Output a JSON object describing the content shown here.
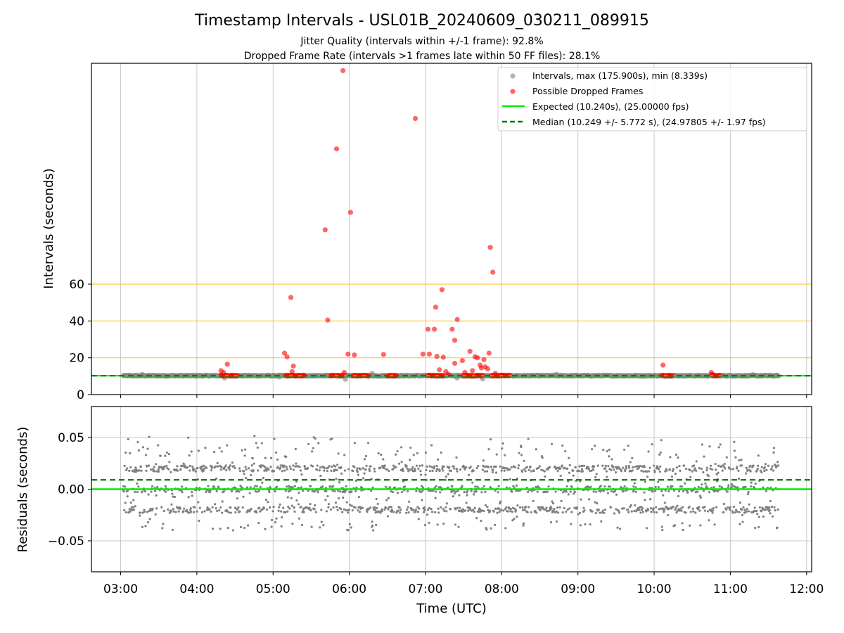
{
  "chart_data": [
    {
      "type": "scatter",
      "title": "Timestamp Intervals - USL01B_20240609_030211_089915",
      "subtitle_1": "Jitter Quality (intervals within +/-1 frame): 92.8%",
      "subtitle_2": "Dropped Frame Rate (intervals >1 frames late within 50 FF files): 28.1%",
      "xlabel": "",
      "ylabel": "Intervals (seconds)",
      "xlim": [
        "02:37",
        "12:04"
      ],
      "ylim": [
        0,
        180
      ],
      "x_ticks": [
        "03:00",
        "04:00",
        "05:00",
        "06:00",
        "07:00",
        "08:00",
        "09:00",
        "10:00",
        "11:00",
        "12:00"
      ],
      "y_ticks": [
        "0",
        "20",
        "40",
        "60"
      ],
      "grid": "vertical",
      "reference_lines": [
        20,
        40,
        60
      ],
      "reference_color": "#ffc83d",
      "legend_position": "top-right",
      "legend": [
        "Intervals, max (175.900s), min (8.339s)",
        "Possible Dropped Frames",
        "Expected (10.240s), (25.00000 fps)",
        "Median (10.249 +/- 5.772 s), (24.97805 +/- 1.97 fps)"
      ],
      "series": [
        {
          "name": "Intervals, max (175.900s), min (8.339s)",
          "color": "#808080",
          "x_range": [
            "03:02",
            "11:38"
          ],
          "typical_value": 10.24,
          "points": [
            {
              "x": "03:17",
              "y": 11.0
            },
            {
              "x": "04:22",
              "y": 9.0
            },
            {
              "x": "05:05",
              "y": 9.5
            },
            {
              "x": "05:57",
              "y": 8.3
            },
            {
              "x": "06:18",
              "y": 11.5
            },
            {
              "x": "07:25",
              "y": 9.0
            },
            {
              "x": "07:45",
              "y": 8.5
            },
            {
              "x": "08:43",
              "y": 11.0
            },
            {
              "x": "11:18",
              "y": 10.8
            }
          ]
        },
        {
          "name": "Possible Dropped Frames",
          "color": "#ff0000",
          "clusters": [
            {
              "from": "04:19",
              "to": "04:32",
              "y": 10.3
            },
            {
              "from": "05:10",
              "to": "05:25",
              "y": 10.3
            },
            {
              "from": "05:45",
              "to": "05:55",
              "y": 10.3
            },
            {
              "from": "06:03",
              "to": "06:15",
              "y": 10.3
            },
            {
              "from": "06:30",
              "to": "06:37",
              "y": 10.3
            },
            {
              "from": "07:02",
              "to": "07:14",
              "y": 10.3
            },
            {
              "from": "07:30",
              "to": "07:45",
              "y": 10.3
            },
            {
              "from": "07:52",
              "to": "08:06",
              "y": 10.3
            },
            {
              "from": "10:06",
              "to": "10:15",
              "y": 10.3
            },
            {
              "from": "10:46",
              "to": "10:52",
              "y": 10.3
            }
          ],
          "points": [
            {
              "x": "04:19",
              "y": 13.0
            },
            {
              "x": "04:21",
              "y": 12.0
            },
            {
              "x": "04:24",
              "y": 16.5
            },
            {
              "x": "05:09",
              "y": 22.5
            },
            {
              "x": "05:11",
              "y": 20.5
            },
            {
              "x": "05:15",
              "y": 12.5
            },
            {
              "x": "05:14",
              "y": 52.8
            },
            {
              "x": "05:16",
              "y": 15.5
            },
            {
              "x": "05:41",
              "y": 89.5
            },
            {
              "x": "05:43",
              "y": 40.5
            },
            {
              "x": "05:50",
              "y": 133.5
            },
            {
              "x": "05:55",
              "y": 176.0
            },
            {
              "x": "05:59",
              "y": 22.0
            },
            {
              "x": "06:01",
              "y": 99.0
            },
            {
              "x": "06:04",
              "y": 21.5
            },
            {
              "x": "05:56",
              "y": 12.0
            },
            {
              "x": "06:27",
              "y": 21.8
            },
            {
              "x": "06:52",
              "y": 150.0
            },
            {
              "x": "06:58",
              "y": 22.0
            },
            {
              "x": "07:02",
              "y": 35.5
            },
            {
              "x": "07:03",
              "y": 22.0
            },
            {
              "x": "07:07",
              "y": 35.5
            },
            {
              "x": "07:08",
              "y": 47.5
            },
            {
              "x": "07:09",
              "y": 20.8
            },
            {
              "x": "07:13",
              "y": 57.0
            },
            {
              "x": "07:14",
              "y": 20.3
            },
            {
              "x": "07:16",
              "y": 12.5
            },
            {
              "x": "07:11",
              "y": 13.5
            },
            {
              "x": "07:18",
              "y": 11.0
            },
            {
              "x": "07:21",
              "y": 35.5
            },
            {
              "x": "07:23",
              "y": 29.5
            },
            {
              "x": "07:25",
              "y": 40.8
            },
            {
              "x": "07:23",
              "y": 17.0
            },
            {
              "x": "07:29",
              "y": 18.5
            },
            {
              "x": "07:31",
              "y": 12.0
            },
            {
              "x": "07:35",
              "y": 23.5
            },
            {
              "x": "07:37",
              "y": 13.0
            },
            {
              "x": "07:39",
              "y": 20.5
            },
            {
              "x": "07:41",
              "y": 20.0
            },
            {
              "x": "07:43",
              "y": 16.0
            },
            {
              "x": "07:44",
              "y": 14.5
            },
            {
              "x": "07:46",
              "y": 19.0
            },
            {
              "x": "07:47",
              "y": 15.0
            },
            {
              "x": "07:49",
              "y": 14.0
            },
            {
              "x": "07:50",
              "y": 22.5
            },
            {
              "x": "07:51",
              "y": 80.0
            },
            {
              "x": "07:53",
              "y": 66.5
            },
            {
              "x": "07:55",
              "y": 11.5
            },
            {
              "x": "10:07",
              "y": 16.0
            },
            {
              "x": "10:45",
              "y": 12.0
            },
            {
              "x": "10:46",
              "y": 11.0
            }
          ]
        },
        {
          "name": "Expected (10.240s), (25.00000 fps)",
          "color": "#00ee00",
          "style": "solid",
          "y": 10.24
        },
        {
          "name": "Median (10.249 +/- 5.772 s), (24.97805 +/- 1.97 fps)",
          "color": "#007a00",
          "style": "dashed",
          "y": 10.249
        }
      ]
    },
    {
      "type": "scatter",
      "title": "",
      "xlabel": "Time (UTC)",
      "ylabel": "Residuals (seconds)",
      "xlim": [
        "02:37",
        "12:04"
      ],
      "ylim": [
        -0.08,
        0.08
      ],
      "x_ticks": [
        "03:00",
        "04:00",
        "05:00",
        "06:00",
        "07:00",
        "08:00",
        "09:00",
        "10:00",
        "11:00",
        "12:00"
      ],
      "y_ticks": [
        "0.05",
        "0.00",
        "−0.05"
      ],
      "grid": "both",
      "series": [
        {
          "name": "",
          "color": "#808080",
          "x_range": [
            "03:02",
            "11:38"
          ],
          "bands": [
            -0.02,
            0.0,
            0.02
          ],
          "spread": [
            -0.04,
            0.053
          ]
        },
        {
          "name": "",
          "color": "#00ee00",
          "style": "solid",
          "y": 0.0
        },
        {
          "name": "",
          "color": "#007a00",
          "style": "dashed",
          "y": 0.009
        }
      ]
    }
  ]
}
